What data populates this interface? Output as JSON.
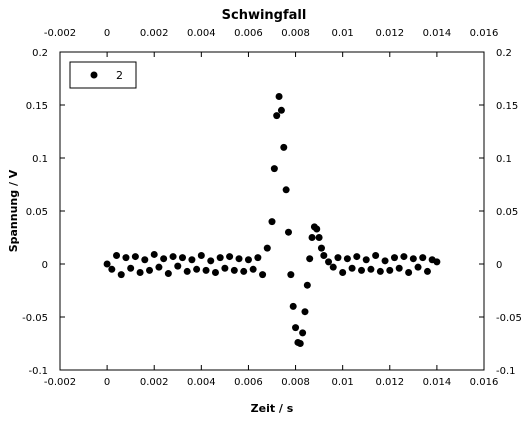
{
  "chart_data": {
    "type": "scatter",
    "title": "Schwingfall",
    "xlabel": "Zeit / s",
    "ylabel": "Spannung / V",
    "xlim": [
      -0.002,
      0.016
    ],
    "ylim": [
      -0.1,
      0.2
    ],
    "x_ticks": [
      "-0.002",
      "0",
      "0.002",
      "0.004",
      "0.006",
      "0.008",
      "0.01",
      "0.012",
      "0.014",
      "0.016"
    ],
    "y_ticks": [
      "-0.1",
      "-0.05",
      "0",
      "0.05",
      "0.1",
      "0.15",
      "0.2"
    ],
    "legend": {
      "position": "top-left",
      "entries": [
        "2"
      ]
    },
    "series": [
      {
        "name": "2",
        "marker": "circle",
        "color": "#000000",
        "x": [
          0.0,
          0.0002,
          0.0004,
          0.0006,
          0.0008,
          0.001,
          0.0012,
          0.0014,
          0.0016,
          0.0018,
          0.002,
          0.0022,
          0.0024,
          0.0026,
          0.0028,
          0.003,
          0.0032,
          0.0034,
          0.0036,
          0.0038,
          0.004,
          0.0042,
          0.0044,
          0.0046,
          0.0048,
          0.005,
          0.0052,
          0.0054,
          0.0056,
          0.0058,
          0.006,
          0.0062,
          0.0064,
          0.0066,
          0.0068,
          0.007,
          0.0071,
          0.0072,
          0.0073,
          0.0074,
          0.0075,
          0.0076,
          0.0077,
          0.0078,
          0.0079,
          0.008,
          0.0081,
          0.0082,
          0.0083,
          0.0084,
          0.0085,
          0.0086,
          0.0087,
          0.0088,
          0.0089,
          0.009,
          0.0091,
          0.0092,
          0.0094,
          0.0096,
          0.0098,
          0.01,
          0.0102,
          0.0104,
          0.0106,
          0.0108,
          0.011,
          0.0112,
          0.0114,
          0.0116,
          0.0118,
          0.012,
          0.0122,
          0.0124,
          0.0126,
          0.0128,
          0.013,
          0.0132,
          0.0134,
          0.0136,
          0.0138,
          0.014
        ],
        "y": [
          0.0,
          -0.005,
          0.008,
          -0.01,
          0.006,
          -0.004,
          0.007,
          -0.008,
          0.004,
          -0.006,
          0.009,
          -0.003,
          0.005,
          -0.009,
          0.007,
          -0.002,
          0.006,
          -0.007,
          0.004,
          -0.005,
          0.008,
          -0.006,
          0.003,
          -0.008,
          0.006,
          -0.004,
          0.007,
          -0.006,
          0.005,
          -0.007,
          0.004,
          -0.005,
          0.006,
          -0.01,
          0.015,
          0.04,
          0.09,
          0.14,
          0.158,
          0.145,
          0.11,
          0.07,
          0.03,
          -0.01,
          -0.04,
          -0.06,
          -0.074,
          -0.075,
          -0.065,
          -0.045,
          -0.02,
          0.005,
          0.025,
          0.035,
          0.033,
          0.025,
          0.015,
          0.008,
          0.002,
          -0.003,
          0.006,
          -0.008,
          0.005,
          -0.004,
          0.007,
          -0.006,
          0.004,
          -0.005,
          0.008,
          -0.007,
          0.003,
          -0.006,
          0.006,
          -0.004,
          0.007,
          -0.008,
          0.005,
          -0.003,
          0.006,
          -0.007,
          0.004,
          0.002
        ]
      }
    ]
  }
}
